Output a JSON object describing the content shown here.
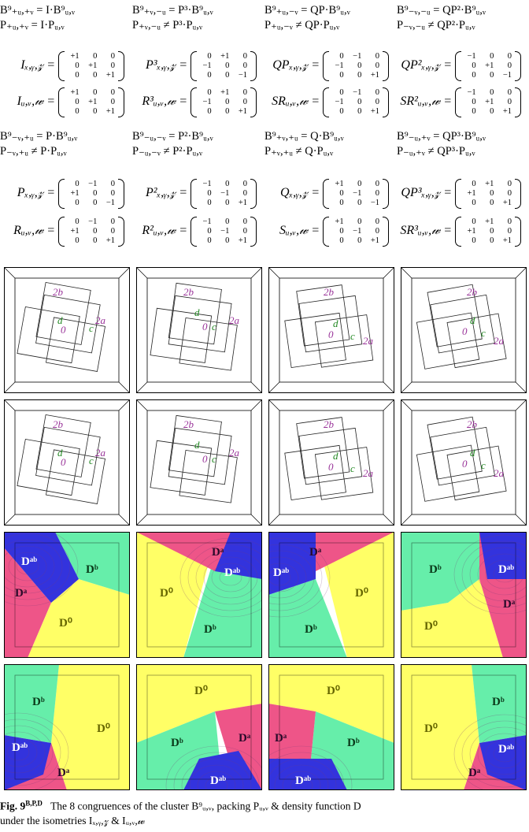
{
  "equations": {
    "group1": [
      {
        "b": "B⁹₊ᵤ,₊ᵥ = I·B⁹ᵤ,ᵥ",
        "p": "P₊ᵤ,₊ᵥ = I·Pᵤ,ᵥ"
      },
      {
        "b": "B⁹₊ᵥ,₋ᵤ = P³·B⁹ᵤ,ᵥ",
        "p": "P₊ᵥ,₋ᵤ ≠ P³·Pᵤ,ᵥ"
      },
      {
        "b": "B⁹₊ᵤ,₋ᵥ = QP·B⁹ᵤ,ᵥ",
        "p": "P₊ᵤ,₋ᵥ ≠ QP·Pᵤ,ᵥ"
      },
      {
        "b": "B⁹₋ᵥ,₋ᵤ = QP²·B⁹ᵤ,ᵥ",
        "p": "P₋ᵥ,₋ᵤ ≠ QP²·Pᵤ,ᵥ"
      }
    ],
    "group2": [
      {
        "b": "B⁹₋ᵥ,₊ᵤ = P·B⁹ᵤ,ᵥ",
        "p": "P₋ᵥ,₊ᵤ ≠ P·Pᵤ,ᵥ"
      },
      {
        "b": "B⁹₋ᵤ,₋ᵥ = P²·B⁹ᵤ,ᵥ",
        "p": "P₋ᵤ,₋ᵥ ≠ P²·Pᵤ,ᵥ"
      },
      {
        "b": "B⁹₊ᵥ,₊ᵤ = Q·B⁹ᵤ,ᵥ",
        "p": "P₊ᵥ,₊ᵤ ≠ Q·Pᵤ,ᵥ"
      },
      {
        "b": "B⁹₋ᵤ,₊ᵥ = QP³·B⁹ᵤ,ᵥ",
        "p": "P₋ᵤ,₊ᵥ ≠ QP³·Pᵤ,ᵥ"
      }
    ]
  },
  "matrices": {
    "rowA": [
      {
        "label": "Iₓ,ᵧ,𝓏 =",
        "m": [
          "+1",
          "0",
          "0",
          "0",
          "+1",
          "0",
          "0",
          "0",
          "+1"
        ]
      },
      {
        "label": "P³ₓ,ᵧ,𝓏 =",
        "m": [
          "0",
          "+1",
          "0",
          "−1",
          "0",
          "0",
          "0",
          "0",
          "−1"
        ]
      },
      {
        "label": "QPₓ,ᵧ,𝓏 =",
        "m": [
          "0",
          "−1",
          "0",
          "−1",
          "0",
          "0",
          "0",
          "0",
          "+1"
        ]
      },
      {
        "label": "QP²ₓ,ᵧ,𝓏 =",
        "m": [
          "−1",
          "0",
          "0",
          "0",
          "+1",
          "0",
          "0",
          "0",
          "−1"
        ]
      }
    ],
    "rowB": [
      {
        "label": "Iᵤ,ᵥ,𝓌 =",
        "m": [
          "+1",
          "0",
          "0",
          "0",
          "+1",
          "0",
          "0",
          "0",
          "+1"
        ]
      },
      {
        "label": "R³ᵤ,ᵥ,𝓌 =",
        "m": [
          "0",
          "+1",
          "0",
          "−1",
          "0",
          "0",
          "0",
          "0",
          "+1"
        ]
      },
      {
        "label": "SRᵤ,ᵥ,𝓌 =",
        "m": [
          "0",
          "−1",
          "0",
          "−1",
          "0",
          "0",
          "0",
          "0",
          "+1"
        ]
      },
      {
        "label": "SR²ᵤ,ᵥ,𝓌 =",
        "m": [
          "−1",
          "0",
          "0",
          "0",
          "+1",
          "0",
          "0",
          "0",
          "+1"
        ]
      }
    ],
    "rowC": [
      {
        "label": "Pₓ,ᵧ,𝓏 =",
        "m": [
          "0",
          "−1",
          "0",
          "+1",
          "0",
          "0",
          "0",
          "0",
          "−1"
        ]
      },
      {
        "label": "P²ₓ,ᵧ,𝓏 =",
        "m": [
          "−1",
          "0",
          "0",
          "0",
          "−1",
          "0",
          "0",
          "0",
          "+1"
        ]
      },
      {
        "label": "Qₓ,ᵧ,𝓏 =",
        "m": [
          "+1",
          "0",
          "0",
          "0",
          "−1",
          "0",
          "0",
          "0",
          "−1"
        ]
      },
      {
        "label": "QP³ₓ,ᵧ,𝓏 =",
        "m": [
          "0",
          "+1",
          "0",
          "+1",
          "0",
          "0",
          "0",
          "0",
          "+1"
        ]
      }
    ],
    "rowD": [
      {
        "label": "Rᵤ,ᵥ,𝓌 =",
        "m": [
          "0",
          "−1",
          "0",
          "+1",
          "0",
          "0",
          "0",
          "0",
          "+1"
        ]
      },
      {
        "label": "R²ᵤ,ᵥ,𝓌 =",
        "m": [
          "−1",
          "0",
          "0",
          "0",
          "−1",
          "0",
          "0",
          "0",
          "+1"
        ]
      },
      {
        "label": "Sᵤ,ᵥ,𝓌 =",
        "m": [
          "+1",
          "0",
          "0",
          "0",
          "−1",
          "0",
          "0",
          "0",
          "+1"
        ]
      },
      {
        "label": "SR³ᵤ,ᵥ,𝓌 =",
        "m": [
          "0",
          "+1",
          "0",
          "+1",
          "0",
          "0",
          "0",
          "0",
          "+1"
        ]
      }
    ]
  },
  "packing_labels": {
    "b": "2b",
    "d": "d",
    "c": "c",
    "o": "0",
    "a": "2a"
  },
  "density_labels": {
    "ab": "Dᵃᵇ",
    "a": "Dᵃ",
    "b": "Dᵇ",
    "o": "D⁰"
  },
  "colors": {
    "yellow": "#ffff66",
    "green": "#66eeaa",
    "pink": "#ee5588",
    "blue": "#3333dd",
    "label_purple": "#993399",
    "label_green": "#228822"
  },
  "caption": {
    "fig": "Fig. 9",
    "sup": "B,P,D",
    "text1": "The 8 congruences of the cluster B⁹ᵤ,ᵥ, packing Pᵤ,ᵥ & density function D",
    "text2": "under the isometries Iₓ,ᵧ,𝓏 & Iᵤ,ᵥ,𝓌"
  }
}
